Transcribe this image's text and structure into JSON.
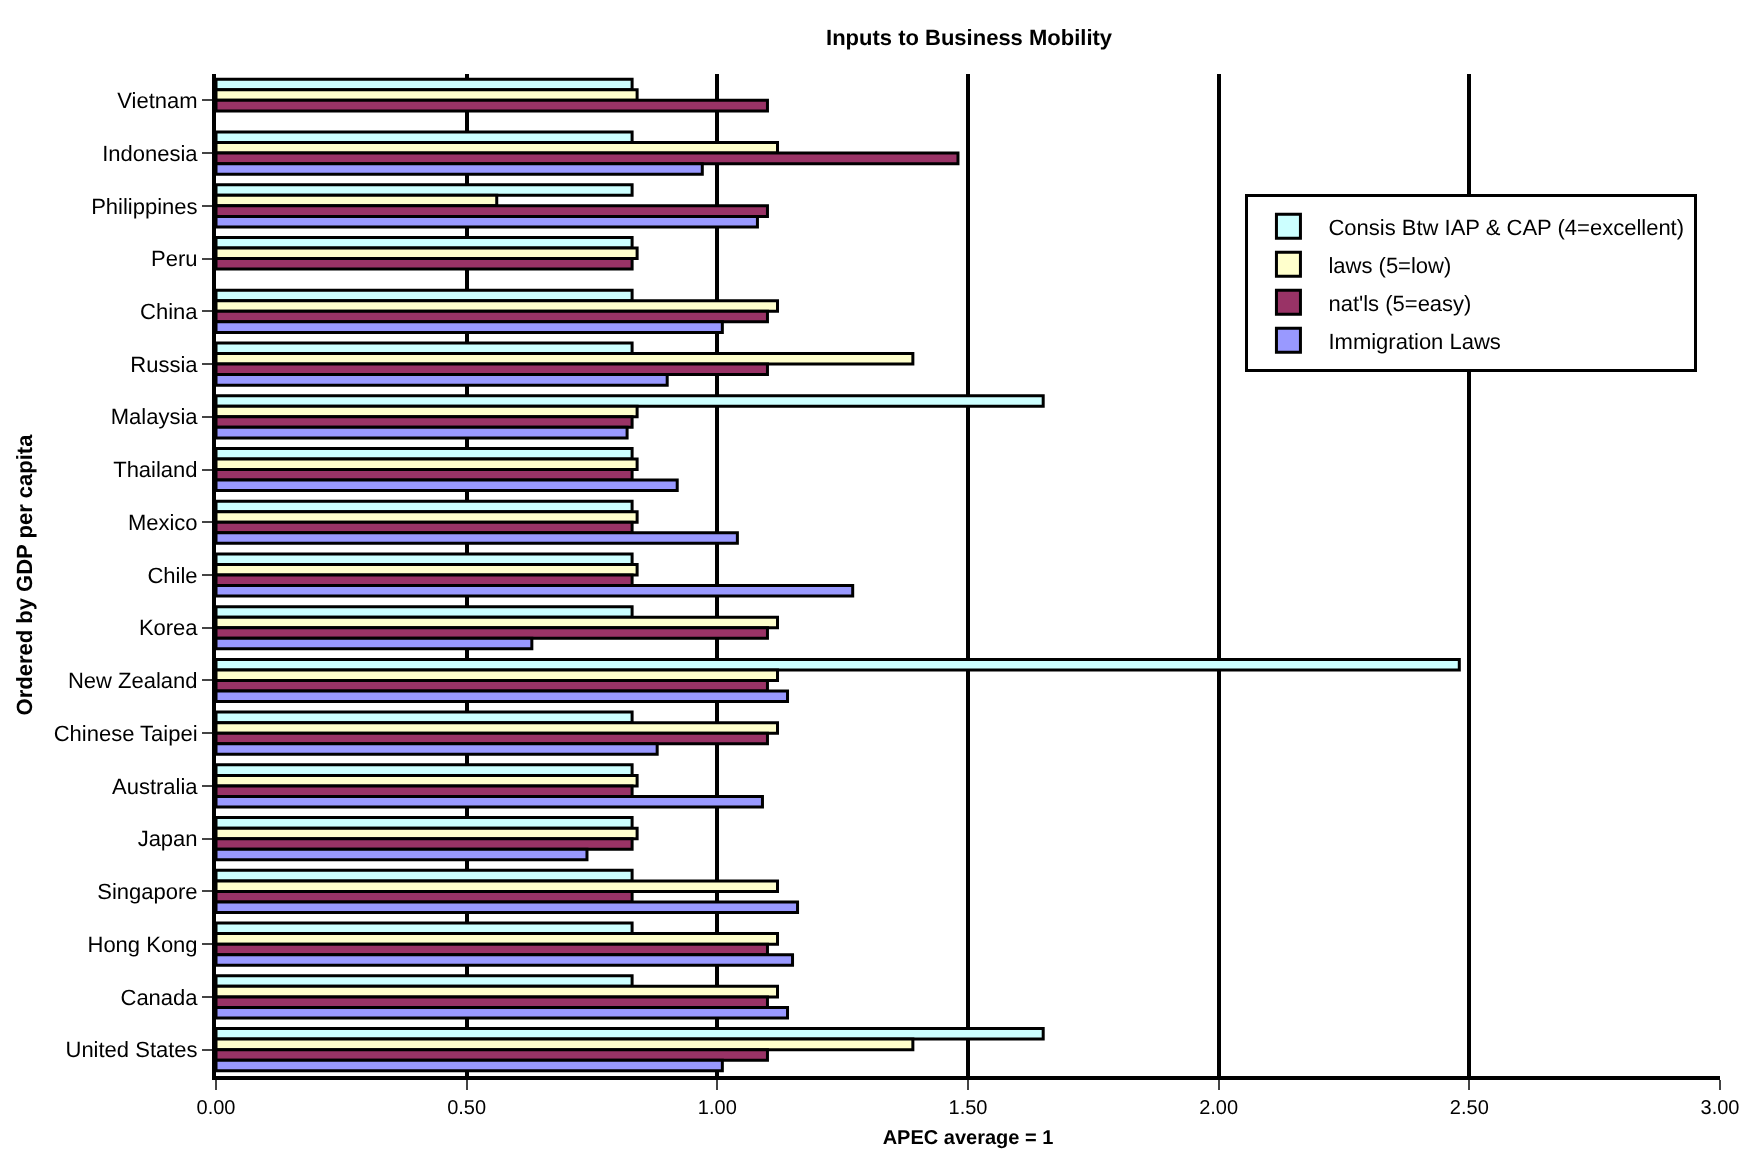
{
  "chart_data": {
    "type": "bar",
    "orientation": "horizontal",
    "title": "Inputs to Business Mobility",
    "xlabel": "APEC average = 1",
    "ylabel": "Ordered by GDP per capita",
    "categories": [
      "Vietnam",
      "Indonesia",
      "Philippines",
      "Peru",
      "China",
      "Russia",
      "Malaysia",
      "Thailand",
      "Mexico",
      "Chile",
      "Korea",
      "New Zealand",
      "Chinese Taipei",
      "Australia",
      "Japan",
      "Singapore",
      "Hong Kong",
      "Canada",
      "United States"
    ],
    "series": [
      {
        "name": "Consis Btw IAP & CAP (4=excellent)",
        "color": "#ccffff",
        "values": [
          0.83,
          0.83,
          0.83,
          0.83,
          0.83,
          0.83,
          1.65,
          0.83,
          0.83,
          0.83,
          0.83,
          2.48,
          0.83,
          0.83,
          0.83,
          0.83,
          0.83,
          0.83,
          1.65
        ]
      },
      {
        "name": "laws (5=low)",
        "color": "#ffffcc",
        "values": [
          0.84,
          1.12,
          0.56,
          0.84,
          1.12,
          1.39,
          0.84,
          0.84,
          0.84,
          0.84,
          1.12,
          1.12,
          1.12,
          0.84,
          0.84,
          1.12,
          1.12,
          1.12,
          1.39
        ]
      },
      {
        "name": "nat'ls (5=easy)",
        "color": "#993366",
        "values": [
          1.1,
          1.48,
          1.1,
          0.83,
          1.1,
          1.1,
          0.83,
          0.83,
          0.83,
          0.83,
          1.1,
          1.1,
          1.1,
          0.83,
          0.83,
          0.83,
          1.1,
          1.1,
          1.1
        ]
      },
      {
        "name": "Immigration Laws",
        "color": "#9999ff",
        "values": [
          null,
          0.97,
          1.08,
          null,
          1.01,
          0.9,
          0.82,
          0.92,
          1.04,
          1.27,
          0.63,
          1.14,
          0.88,
          1.09,
          0.74,
          1.16,
          1.15,
          1.14,
          1.01
        ]
      }
    ],
    "xlim": [
      0,
      3
    ],
    "xticks": [
      {
        "value": 0,
        "label": "0.00"
      },
      {
        "value": 0.5,
        "label": "0.50"
      },
      {
        "value": 1,
        "label": "1.00"
      },
      {
        "value": 1.5,
        "label": "1.50"
      },
      {
        "value": 2,
        "label": "2.00"
      },
      {
        "value": 2.5,
        "label": "2.50"
      },
      {
        "value": 3,
        "label": "3.00"
      }
    ],
    "grid": "x",
    "legend": "top right"
  }
}
